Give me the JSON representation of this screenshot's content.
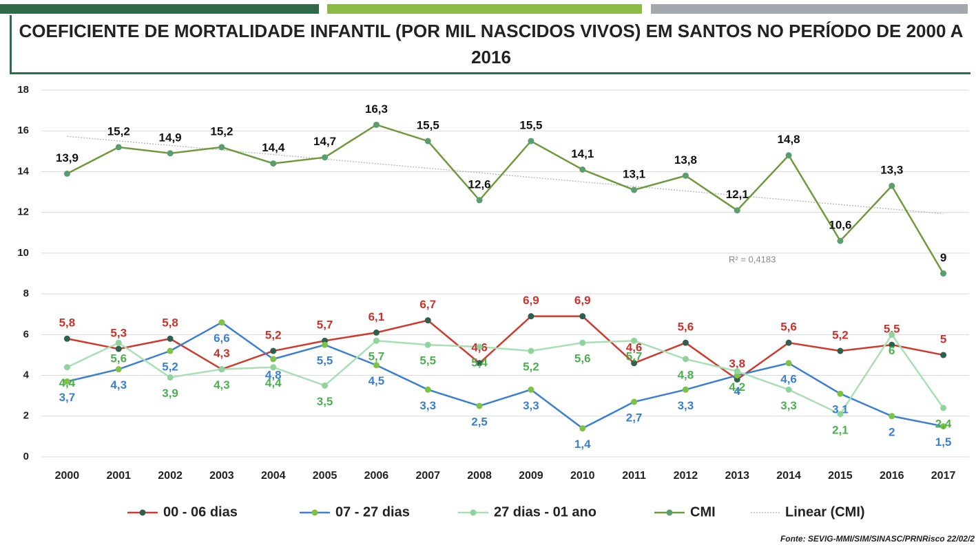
{
  "chart_data": {
    "type": "line",
    "title": "COEFICIENTE DE MORTALIDADE INFANTIL (POR MIL NASCIDOS VIVOS) EM SANTOS NO PERÍODO DE 2000 A 2016",
    "source": "Fonte: SEVIG-MMI/SIM/SINASC/PRNRisco 22/02/2",
    "categories": [
      "2000",
      "2001",
      "2002",
      "2003",
      "2004",
      "2005",
      "2006",
      "2007",
      "2008",
      "2009",
      "2010",
      "2011",
      "2012",
      "2013",
      "2014",
      "2015",
      "2016",
      "2017"
    ],
    "ylim": [
      0,
      18
    ],
    "yticks": [
      0,
      2,
      4,
      6,
      8,
      10,
      12,
      14,
      16,
      18
    ],
    "grid": true,
    "series": [
      {
        "name": "00 - 06 dias",
        "color": "#d0392b",
        "marker_color": "#2f5f4f",
        "label_color": "#c8322a",
        "label_side": "above",
        "values": [
          5.8,
          5.3,
          5.8,
          4.3,
          5.2,
          5.7,
          6.1,
          6.7,
          4.6,
          6.9,
          6.9,
          4.6,
          5.6,
          3.8,
          5.6,
          5.2,
          5.5,
          5
        ],
        "value_labels": [
          "5,8",
          "5,3",
          "5,8",
          "4,3",
          "5,2",
          "5,7",
          "6,1",
          "6,7",
          "4,6",
          "6,9",
          "6,9",
          "4,6",
          "5,6",
          "3,8",
          "5,6",
          "5,2",
          "5,5",
          "5"
        ]
      },
      {
        "name": "07 - 27 dias",
        "color": "#3a7fd0",
        "marker_color": "#7cc243",
        "label_color": "#3a7fd0",
        "label_side": "below",
        "values": [
          3.7,
          4.3,
          5.2,
          6.6,
          4.8,
          5.5,
          4.5,
          3.3,
          2.5,
          3.3,
          1.4,
          2.7,
          3.3,
          4,
          4.6,
          3.1,
          2,
          1.5
        ],
        "value_labels": [
          "3,7",
          "4,3",
          "5,2",
          "6,6",
          "4,8",
          "5,5",
          "4,5",
          "3,3",
          "2,5",
          "3,3",
          "1,4",
          "2,7",
          "3,3",
          "4",
          "4,6",
          "3,1",
          "2",
          "1,5"
        ]
      },
      {
        "name": "27 dias - 01 ano",
        "color": "#a9e0b3",
        "marker_color": "#8fd49c",
        "label_color": "#4caf50",
        "label_side": "below",
        "values": [
          4.4,
          5.6,
          3.9,
          4.3,
          4.4,
          3.5,
          5.7,
          5.5,
          5.4,
          5.2,
          5.6,
          5.7,
          4.8,
          4.2,
          3.3,
          2.1,
          6,
          2.4
        ],
        "value_labels": [
          "4,4",
          "5,6",
          "3,9",
          "4,3",
          "4,4",
          "3,5",
          "5,7",
          "5,5",
          "5,4",
          "5,2",
          "5,6",
          "5,7",
          "4,8",
          "4,2",
          "3,3",
          "2,1",
          "6",
          "2,4"
        ]
      },
      {
        "name": "CMI",
        "color": "#6f9a3b",
        "marker_color": "#5a9e70",
        "label_color": "#111111",
        "label_side": "above",
        "values": [
          13.9,
          15.2,
          14.9,
          15.2,
          14.4,
          14.7,
          16.3,
          15.5,
          12.6,
          15.5,
          14.1,
          13.1,
          13.8,
          12.1,
          14.8,
          10.6,
          13.3,
          9
        ],
        "value_labels": [
          "13,9",
          "15,2",
          "14,9",
          "15,2",
          "14,4",
          "14,7",
          "16,3",
          "15,5",
          "12,6",
          "15,5",
          "14,1",
          "13,1",
          "13,8",
          "12,1",
          "14,8",
          "10,6",
          "13,3",
          "9"
        ]
      }
    ],
    "trendline": {
      "name": "Linear (CMI)",
      "series": 3,
      "color": "#bbbbbb",
      "r2_label": "R² = 0,4183"
    }
  }
}
